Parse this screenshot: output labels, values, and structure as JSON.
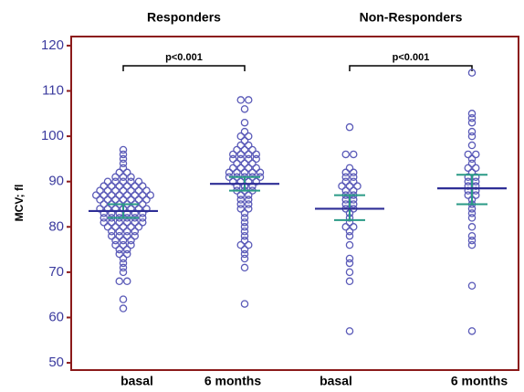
{
  "chart_data": {
    "type": "dot",
    "group_titles": [
      "Responders",
      "Non-Responders"
    ],
    "brackets": [
      "p<0.001",
      "p<0.001"
    ],
    "y_label": "MCV; fl",
    "ylim": [
      48.4,
      122
    ],
    "yticks": [
      50,
      60,
      70,
      80,
      90,
      100,
      110,
      120
    ],
    "dot_color": "#5a5ab8",
    "mean_color": "#2e2e96",
    "ci_color": "#2a9a86",
    "frame_color": "#8b1a1a",
    "groups": [
      {
        "label": "basal",
        "mean": 83.5,
        "ci": [
          82,
          85
        ],
        "values": [
          97,
          96,
          95,
          94,
          93,
          92,
          92,
          91,
          91,
          91,
          90,
          90,
          90,
          90,
          90,
          89,
          89,
          89,
          89,
          89,
          89,
          88,
          88,
          88,
          88,
          88,
          88,
          88,
          87,
          87,
          87,
          87,
          87,
          87,
          87,
          87,
          86,
          86,
          86,
          86,
          86,
          86,
          86,
          85,
          85,
          85,
          85,
          85,
          85,
          84,
          84,
          84,
          84,
          84,
          84,
          84,
          83,
          83,
          83,
          83,
          83,
          83,
          82,
          82,
          82,
          82,
          82,
          82,
          81,
          81,
          81,
          81,
          81,
          81,
          80,
          80,
          80,
          80,
          80,
          79,
          79,
          79,
          79,
          78,
          78,
          78,
          78,
          77,
          77,
          77,
          76,
          76,
          76,
          75,
          75,
          74,
          74,
          73,
          72,
          71,
          70,
          68,
          68,
          64,
          62
        ]
      },
      {
        "label": "6 months",
        "mean": 89.5,
        "ci": [
          88,
          91
        ],
        "values": [
          108,
          108,
          106,
          103,
          101,
          100,
          100,
          99,
          98,
          98,
          97,
          97,
          97,
          96,
          96,
          96,
          96,
          95,
          95,
          95,
          95,
          94,
          94,
          94,
          93,
          93,
          93,
          93,
          92,
          92,
          92,
          92,
          92,
          91,
          91,
          91,
          91,
          91,
          90,
          90,
          90,
          90,
          89,
          89,
          89,
          88,
          88,
          88,
          87,
          87,
          86,
          86,
          85,
          85,
          84,
          84,
          83,
          82,
          81,
          80,
          79,
          78,
          77,
          76,
          76,
          75,
          74,
          73,
          71,
          63
        ]
      },
      {
        "label": "basal",
        "mean": 84,
        "ci": [
          81.5,
          87
        ],
        "values": [
          102,
          96,
          96,
          93,
          92,
          92,
          91,
          91,
          90,
          90,
          89,
          89,
          89,
          88,
          88,
          87,
          87,
          86,
          86,
          85,
          85,
          84,
          84,
          83,
          82,
          81,
          80,
          80,
          79,
          78,
          76,
          73,
          72,
          70,
          68,
          57
        ]
      },
      {
        "label": "6 months",
        "mean": 88.5,
        "ci": [
          85,
          91.5
        ],
        "values": [
          114,
          105,
          104,
          103,
          101,
          100,
          98,
          96,
          96,
          95,
          94,
          93,
          93,
          92,
          91,
          91,
          90,
          90,
          89,
          89,
          88,
          88,
          87,
          87,
          86,
          85,
          84,
          83,
          82,
          80,
          78,
          77,
          76,
          67,
          57
        ]
      }
    ]
  }
}
